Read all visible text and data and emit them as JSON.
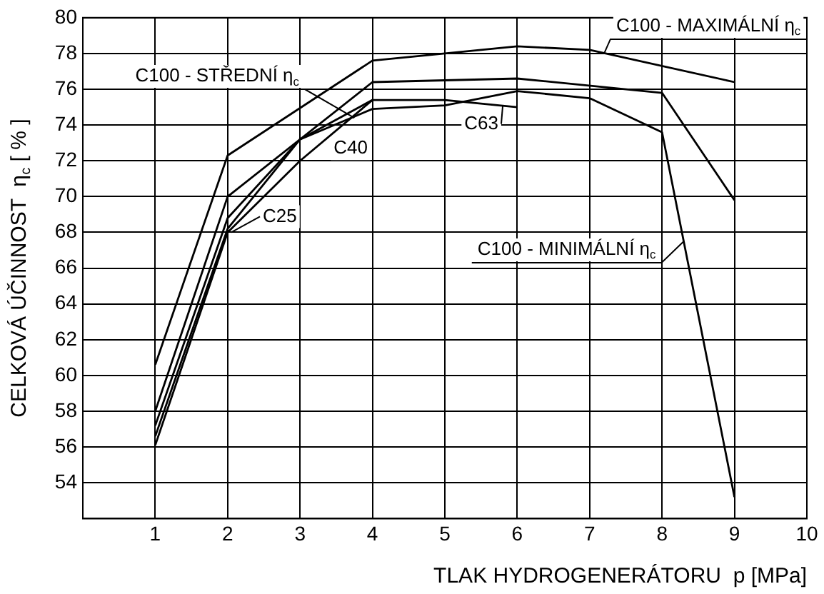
{
  "chart_data": {
    "type": "line",
    "xlabel": "TLAK HYDROGENERÁTORU  p [MPa]",
    "ylabel": "CELKOVÁ ÚČINNOST  η$_{c}$ [ % ]",
    "xlim": [
      0,
      10
    ],
    "xticks": [
      {
        "value": 0,
        "label": null
      },
      1,
      2,
      3,
      4,
      5,
      6,
      7,
      8,
      9,
      10
    ],
    "ylim": [
      52,
      80
    ],
    "yticks": [
      {
        "value": 52,
        "label": null
      },
      54,
      56,
      58,
      60,
      62,
      64,
      66,
      68,
      70,
      72,
      74,
      76,
      78,
      80
    ],
    "grid": true,
    "marker": "none",
    "line_style": "solid",
    "series": [
      {
        "color": "#000000",
        "x": [
          1,
          2,
          4,
          6,
          7,
          9
        ],
        "values": [
          60.6,
          72.3,
          77.6,
          78.4,
          78.2,
          76.4
        ]
      },
      {
        "color": "#000000",
        "x": [
          1,
          2,
          4,
          6,
          8,
          9
        ],
        "values": [
          58.0,
          70.0,
          76.4,
          76.6,
          75.8,
          69.8
        ]
      },
      {
        "color": "#000000",
        "x": [
          1,
          2,
          3,
          4,
          5,
          6
        ],
        "values": [
          57.2,
          68.8,
          73.2,
          75.4,
          75.4,
          75.0
        ]
      },
      {
        "color": "#000000",
        "x": [
          1,
          2,
          3,
          4,
          5,
          6,
          7,
          8,
          9
        ],
        "values": [
          56.6,
          68.2,
          73.2,
          74.9,
          75.1,
          75.9,
          75.5,
          73.6,
          53.2
        ]
      },
      {
        "color": "#000000",
        "x": [
          1,
          2,
          3,
          4
        ],
        "values": [
          56.1,
          68.0,
          72.0,
          75.4
        ]
      }
    ],
    "annotations": [
      {
        "text": "C100 - MAXIMÁLNÍ η$_{c}$",
        "x": 7.2,
        "y": 78.0
      },
      {
        "text": "C100 - STŘEDNÍ η$_{c}$",
        "x": 3.75,
        "y": 74.4
      },
      {
        "text": "C63",
        "x": 5.8,
        "y": 75.1
      },
      {
        "text": "C40",
        "x": 3.7,
        "y": 74.2
      },
      {
        "text": "C25",
        "x": 2.05,
        "y": 68.0
      },
      {
        "text": "C100 - MINIMÁLNÍ η$_{c}$",
        "x": 8.3,
        "y": 67.5
      }
    ]
  }
}
